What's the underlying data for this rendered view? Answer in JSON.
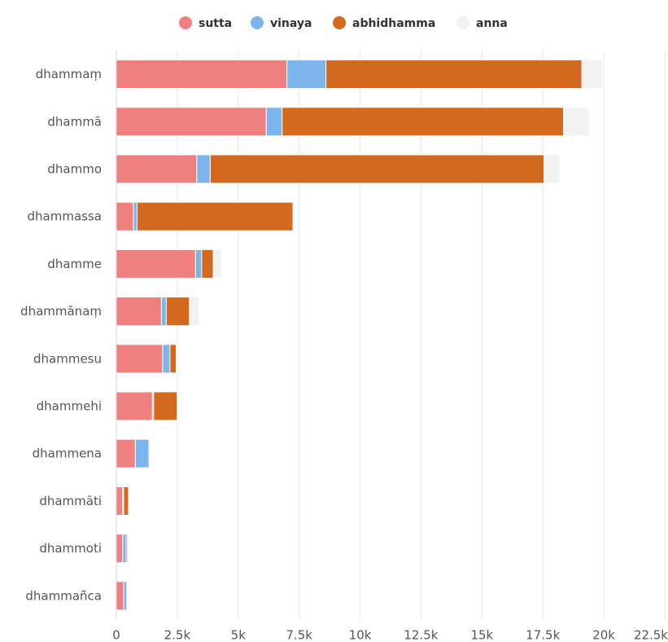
{
  "chart_data": {
    "type": "bar",
    "orientation": "horizontal",
    "stacked": true,
    "categories": [
      "dhammaṃ",
      "dhammā",
      "dhammo",
      "dhammassa",
      "dhamme",
      "dhammānaṃ",
      "dhammesu",
      "dhammehi",
      "dhammena",
      "dhammāti",
      "dhammoti",
      "dhammañca"
    ],
    "series": [
      {
        "name": "sutta",
        "color": "#f08080",
        "values": [
          7000,
          6150,
          3300,
          700,
          3250,
          1850,
          1900,
          1480,
          780,
          260,
          260,
          300
        ]
      },
      {
        "name": "vinaya",
        "color": "#7cb5ec",
        "values": [
          1600,
          650,
          550,
          150,
          250,
          200,
          300,
          50,
          560,
          40,
          140,
          130
        ]
      },
      {
        "name": "abhidhamma",
        "color": "#d2691e",
        "values": [
          10500,
          11550,
          13700,
          6400,
          480,
          950,
          260,
          970,
          20,
          200,
          60,
          0
        ]
      },
      {
        "name": "anna",
        "color": "#f2f2f2",
        "values": [
          850,
          1050,
          650,
          50,
          330,
          400,
          30,
          30,
          30,
          10,
          10,
          10
        ]
      }
    ],
    "xlim": [
      0,
      22500
    ],
    "xticks": [
      "0",
      "2.5k",
      "5k",
      "7.5k",
      "10k",
      "12.5k",
      "15k",
      "17.5k",
      "20k",
      "22.5k"
    ],
    "grid": true,
    "legend_position": "top-center"
  }
}
